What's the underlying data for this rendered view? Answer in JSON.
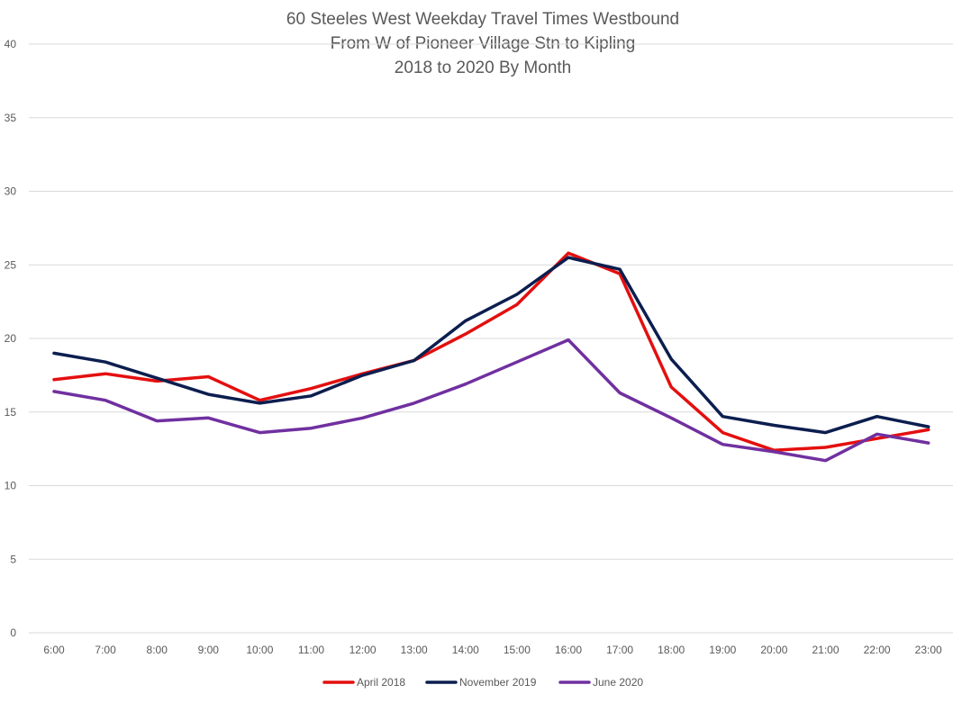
{
  "chart_data": {
    "type": "line",
    "title": [
      "60 Steeles West Weekday Travel Times Westbound",
      "From W of Pioneer Village Stn to Kipling",
      "2018 to 2020 By Month"
    ],
    "xlabel": "",
    "ylabel": "",
    "categories": [
      "6:00",
      "7:00",
      "8:00",
      "9:00",
      "10:00",
      "11:00",
      "12:00",
      "13:00",
      "14:00",
      "15:00",
      "16:00",
      "17:00",
      "18:00",
      "19:00",
      "20:00",
      "21:00",
      "22:00",
      "23:00"
    ],
    "ylim": [
      0,
      40
    ],
    "yticks": [
      0,
      5,
      10,
      15,
      20,
      25,
      30,
      35,
      40
    ],
    "grid": true,
    "legend_position": "bottom",
    "series": [
      {
        "name": "April 2018",
        "color": "#e40f0f",
        "values": [
          17.2,
          17.6,
          17.1,
          17.4,
          15.8,
          16.6,
          17.6,
          18.5,
          20.3,
          22.3,
          25.8,
          24.4,
          16.7,
          13.6,
          12.4,
          12.6,
          13.2,
          13.8
        ]
      },
      {
        "name": "November 2019",
        "color": "#0c1e4f",
        "values": [
          19.0,
          18.4,
          17.3,
          16.2,
          15.6,
          16.1,
          17.5,
          18.5,
          21.2,
          23.0,
          25.5,
          24.7,
          18.6,
          14.7,
          14.1,
          13.6,
          14.7,
          14.0
        ]
      },
      {
        "name": "June 2020",
        "color": "#7030a0",
        "values": [
          16.4,
          15.8,
          14.4,
          14.6,
          13.6,
          13.9,
          14.6,
          15.6,
          16.9,
          18.4,
          19.9,
          16.3,
          14.6,
          12.8,
          12.3,
          11.7,
          13.5,
          12.9
        ]
      }
    ]
  }
}
